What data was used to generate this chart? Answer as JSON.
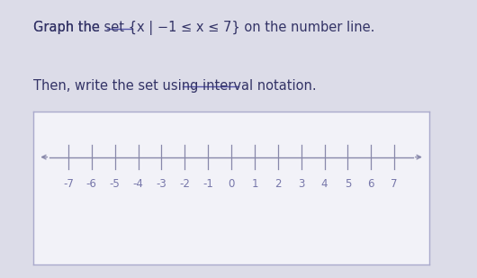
{
  "title_line1": "Graph the set {x | −1 ≤ x ≤ 7} on the number line.",
  "title_line2": "Then, write the set using interval notation.",
  "tick_values": [
    -7,
    -6,
    -5,
    -4,
    -3,
    -2,
    -1,
    0,
    1,
    2,
    3,
    4,
    5,
    6,
    7
  ],
  "background_color": "#dcdce8",
  "box_facecolor": "#f2f2f8",
  "box_edgecolor": "#aaaacc",
  "number_line_color": "#8888aa",
  "tick_color": "#8888aa",
  "label_color": "#7777aa",
  "text_color": "#333366",
  "underline_color": "#5555aa",
  "title_fontsize": 10.5,
  "tick_fontsize": 8.5,
  "fig_width": 5.3,
  "fig_height": 3.09,
  "dpi": 100
}
